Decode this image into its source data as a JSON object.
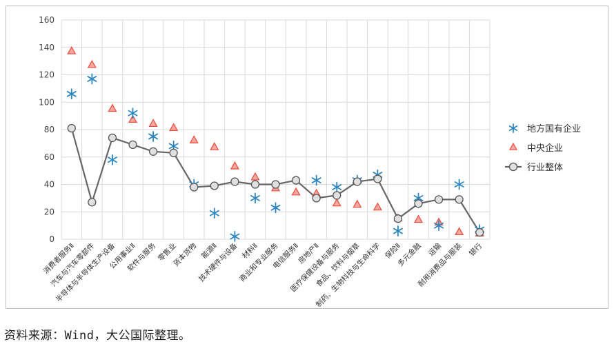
{
  "chart_data": {
    "type": "line",
    "title": "",
    "xlabel": "",
    "ylabel": "",
    "ylim": [
      0,
      160
    ],
    "yticks": [
      0,
      20,
      40,
      60,
      80,
      100,
      120,
      140,
      160
    ],
    "grid": "vertical and horizontal",
    "legend_position": "right",
    "categories": [
      "消费者服务Ⅱ",
      "汽车与汽车零部件",
      "半导体与半导体生产设备",
      "公用事业Ⅱ",
      "软件与服务",
      "零售业",
      "资本货物",
      "能源Ⅱ",
      "技术硬件与设备",
      "材料Ⅱ",
      "商业和专业服务",
      "电信服务Ⅱ",
      "房地产Ⅱ",
      "医疗保健设备与服务",
      "食品、饮料与烟草",
      "制药、生物科技与生命科学",
      "保险Ⅱ",
      "多元金融",
      "运输",
      "耐用消费品与服装",
      "银行"
    ],
    "series": [
      {
        "name": "地方国有企业",
        "marker": "asterisk",
        "color": "#2e86c1",
        "values": [
          106,
          117,
          58,
          92,
          75,
          68,
          40,
          19,
          2,
          30,
          23,
          null,
          43,
          38,
          43,
          47,
          6,
          30,
          10,
          40,
          7
        ]
      },
      {
        "name": "中央企业",
        "marker": "triangle",
        "color": "#e74c3c",
        "values": [
          137,
          127,
          95,
          87,
          84,
          81,
          72,
          67,
          53,
          45,
          37,
          34,
          33,
          26,
          25,
          23,
          15,
          14,
          12,
          5,
          4
        ]
      },
      {
        "name": "行业整体",
        "marker": "circle-line",
        "color": "#666666",
        "values": [
          81,
          27,
          74,
          69,
          64,
          63,
          38,
          39,
          42,
          40,
          40,
          43,
          30,
          32,
          42,
          44,
          15,
          26,
          29,
          29,
          5
        ]
      }
    ]
  },
  "source_note": "资料来源：Wind，大公国际整理。"
}
